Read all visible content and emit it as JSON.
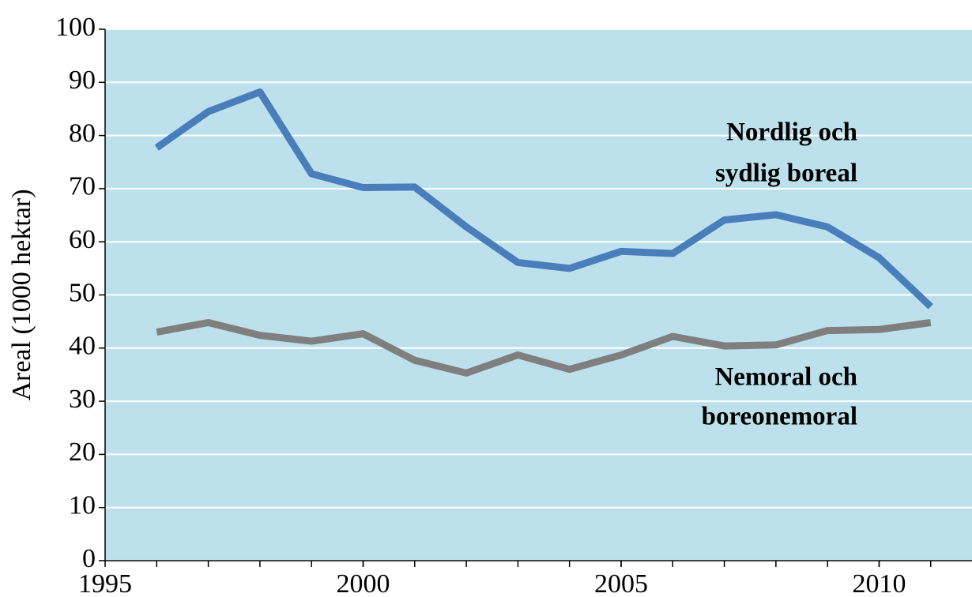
{
  "chart_data": {
    "type": "line",
    "y_label": "Areal (1000 hektar)",
    "x": [
      1996,
      1997,
      1998,
      1999,
      2000,
      2001,
      2002,
      2003,
      2004,
      2005,
      2006,
      2007,
      2008,
      2009,
      2010,
      2011
    ],
    "series": [
      {
        "color": "#4a7ebb",
        "values": [
          77.7,
          84.5,
          88.2,
          72.8,
          70.2,
          70.3,
          62.8,
          56.1,
          55.0,
          58.2,
          57.8,
          64.1,
          65.1,
          62.8,
          57.0,
          47.8
        ]
      },
      {
        "color": "#7f7f7f",
        "values": [
          43.0,
          44.8,
          42.4,
          41.3,
          42.7,
          37.7,
          35.3,
          38.7,
          36.0,
          38.7,
          42.2,
          40.4,
          40.6,
          43.3,
          43.5,
          44.8
        ]
      }
    ],
    "annotations": [
      {
        "lines": [
          "Nordlig och",
          "sydlig boreal"
        ]
      },
      {
        "lines": [
          "Nemoral och",
          "boreonemoral"
        ]
      }
    ],
    "xlim": [
      1995,
      2011.8
    ],
    "xticks": [
      1995,
      2000,
      2005,
      2010
    ],
    "xminor_ticks": [
      1996,
      1997,
      1998,
      1999,
      2000,
      2001,
      2002,
      2003,
      2004,
      2005,
      2006,
      2007,
      2008,
      2009,
      2010,
      2011
    ],
    "ylim": [
      0,
      100
    ],
    "yticks": [
      0,
      10,
      20,
      30,
      40,
      50,
      60,
      70,
      80,
      90,
      100
    ],
    "grid": true,
    "background": "#bde1ec"
  }
}
